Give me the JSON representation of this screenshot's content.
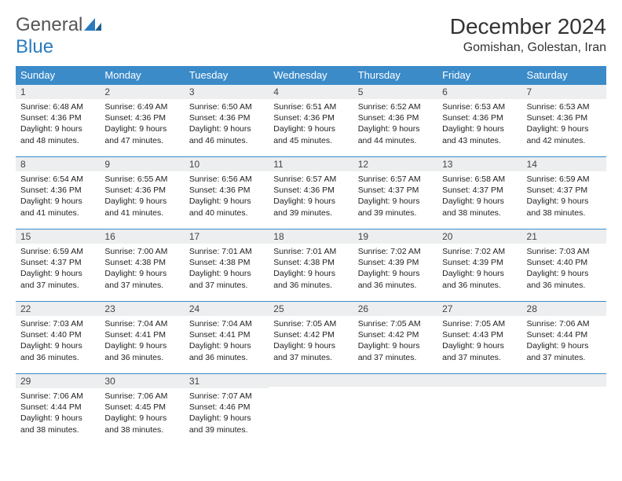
{
  "brand": {
    "general": "General",
    "blue": "Blue"
  },
  "title": "December 2024",
  "location": "Gomishan, Golestan, Iran",
  "headerColor": "#3b8bc9",
  "dayHeaders": [
    "Sunday",
    "Monday",
    "Tuesday",
    "Wednesday",
    "Thursday",
    "Friday",
    "Saturday"
  ],
  "weeks": [
    [
      {
        "n": "1",
        "sr": "6:48 AM",
        "ss": "4:36 PM",
        "dl": "9 hours and 48 minutes."
      },
      {
        "n": "2",
        "sr": "6:49 AM",
        "ss": "4:36 PM",
        "dl": "9 hours and 47 minutes."
      },
      {
        "n": "3",
        "sr": "6:50 AM",
        "ss": "4:36 PM",
        "dl": "9 hours and 46 minutes."
      },
      {
        "n": "4",
        "sr": "6:51 AM",
        "ss": "4:36 PM",
        "dl": "9 hours and 45 minutes."
      },
      {
        "n": "5",
        "sr": "6:52 AM",
        "ss": "4:36 PM",
        "dl": "9 hours and 44 minutes."
      },
      {
        "n": "6",
        "sr": "6:53 AM",
        "ss": "4:36 PM",
        "dl": "9 hours and 43 minutes."
      },
      {
        "n": "7",
        "sr": "6:53 AM",
        "ss": "4:36 PM",
        "dl": "9 hours and 42 minutes."
      }
    ],
    [
      {
        "n": "8",
        "sr": "6:54 AM",
        "ss": "4:36 PM",
        "dl": "9 hours and 41 minutes."
      },
      {
        "n": "9",
        "sr": "6:55 AM",
        "ss": "4:36 PM",
        "dl": "9 hours and 41 minutes."
      },
      {
        "n": "10",
        "sr": "6:56 AM",
        "ss": "4:36 PM",
        "dl": "9 hours and 40 minutes."
      },
      {
        "n": "11",
        "sr": "6:57 AM",
        "ss": "4:36 PM",
        "dl": "9 hours and 39 minutes."
      },
      {
        "n": "12",
        "sr": "6:57 AM",
        "ss": "4:37 PM",
        "dl": "9 hours and 39 minutes."
      },
      {
        "n": "13",
        "sr": "6:58 AM",
        "ss": "4:37 PM",
        "dl": "9 hours and 38 minutes."
      },
      {
        "n": "14",
        "sr": "6:59 AM",
        "ss": "4:37 PM",
        "dl": "9 hours and 38 minutes."
      }
    ],
    [
      {
        "n": "15",
        "sr": "6:59 AM",
        "ss": "4:37 PM",
        "dl": "9 hours and 37 minutes."
      },
      {
        "n": "16",
        "sr": "7:00 AM",
        "ss": "4:38 PM",
        "dl": "9 hours and 37 minutes."
      },
      {
        "n": "17",
        "sr": "7:01 AM",
        "ss": "4:38 PM",
        "dl": "9 hours and 37 minutes."
      },
      {
        "n": "18",
        "sr": "7:01 AM",
        "ss": "4:38 PM",
        "dl": "9 hours and 36 minutes."
      },
      {
        "n": "19",
        "sr": "7:02 AM",
        "ss": "4:39 PM",
        "dl": "9 hours and 36 minutes."
      },
      {
        "n": "20",
        "sr": "7:02 AM",
        "ss": "4:39 PM",
        "dl": "9 hours and 36 minutes."
      },
      {
        "n": "21",
        "sr": "7:03 AM",
        "ss": "4:40 PM",
        "dl": "9 hours and 36 minutes."
      }
    ],
    [
      {
        "n": "22",
        "sr": "7:03 AM",
        "ss": "4:40 PM",
        "dl": "9 hours and 36 minutes."
      },
      {
        "n": "23",
        "sr": "7:04 AM",
        "ss": "4:41 PM",
        "dl": "9 hours and 36 minutes."
      },
      {
        "n": "24",
        "sr": "7:04 AM",
        "ss": "4:41 PM",
        "dl": "9 hours and 36 minutes."
      },
      {
        "n": "25",
        "sr": "7:05 AM",
        "ss": "4:42 PM",
        "dl": "9 hours and 37 minutes."
      },
      {
        "n": "26",
        "sr": "7:05 AM",
        "ss": "4:42 PM",
        "dl": "9 hours and 37 minutes."
      },
      {
        "n": "27",
        "sr": "7:05 AM",
        "ss": "4:43 PM",
        "dl": "9 hours and 37 minutes."
      },
      {
        "n": "28",
        "sr": "7:06 AM",
        "ss": "4:44 PM",
        "dl": "9 hours and 37 minutes."
      }
    ],
    [
      {
        "n": "29",
        "sr": "7:06 AM",
        "ss": "4:44 PM",
        "dl": "9 hours and 38 minutes."
      },
      {
        "n": "30",
        "sr": "7:06 AM",
        "ss": "4:45 PM",
        "dl": "9 hours and 38 minutes."
      },
      {
        "n": "31",
        "sr": "7:07 AM",
        "ss": "4:46 PM",
        "dl": "9 hours and 39 minutes."
      },
      null,
      null,
      null,
      null
    ]
  ],
  "labels": {
    "sunrise": "Sunrise:",
    "sunset": "Sunset:",
    "daylight": "Daylight:"
  }
}
